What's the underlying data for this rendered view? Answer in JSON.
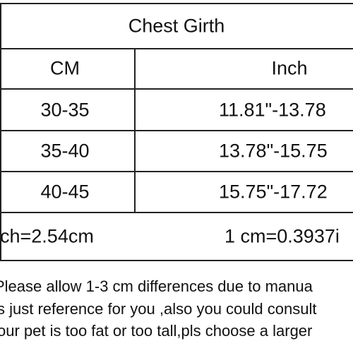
{
  "table": {
    "title": "Chest Girth",
    "header": [
      "CM",
      "Inch"
    ],
    "rows": [
      [
        "30-35",
        "11.81\"-13.78"
      ],
      [
        "35-40",
        "13.78\"-15.75"
      ],
      [
        "40-45",
        "15.75\"-17.72"
      ]
    ],
    "conversion": [
      "ch=2.54cm",
      "1 cm=0.3937i"
    ]
  },
  "notes": [
    "Please allow 1-3 cm differences due to manua",
    "s just reference for you ,also you could consult",
    "our pet is too fat or too tall,pls choose a larger"
  ]
}
